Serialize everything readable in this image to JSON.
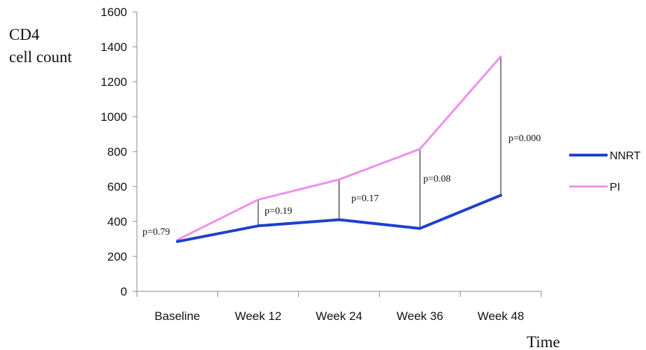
{
  "chart_data": {
    "type": "line",
    "ylabel_lines": [
      "CD4",
      "cell count"
    ],
    "xlabel": "Time",
    "categories": [
      "Baseline",
      "Week 12",
      "Week 24",
      "Week 36",
      "Week 48"
    ],
    "ylim": [
      0,
      1600
    ],
    "yticks": [
      0,
      200,
      400,
      600,
      800,
      1000,
      1200,
      1400,
      1600
    ],
    "grid": false,
    "legend_position": "right",
    "series": [
      {
        "name": "NNRT",
        "color": "#1f3fd1",
        "values": [
          285,
          375,
          410,
          360,
          550
        ]
      },
      {
        "name": "PI",
        "color": "#ee8ef0",
        "values": [
          295,
          525,
          640,
          815,
          1345
        ]
      }
    ],
    "annotations": [
      "p=0.79",
      "p=0.19",
      "p=0.17",
      "p=0.08",
      "p=0.000"
    ]
  }
}
